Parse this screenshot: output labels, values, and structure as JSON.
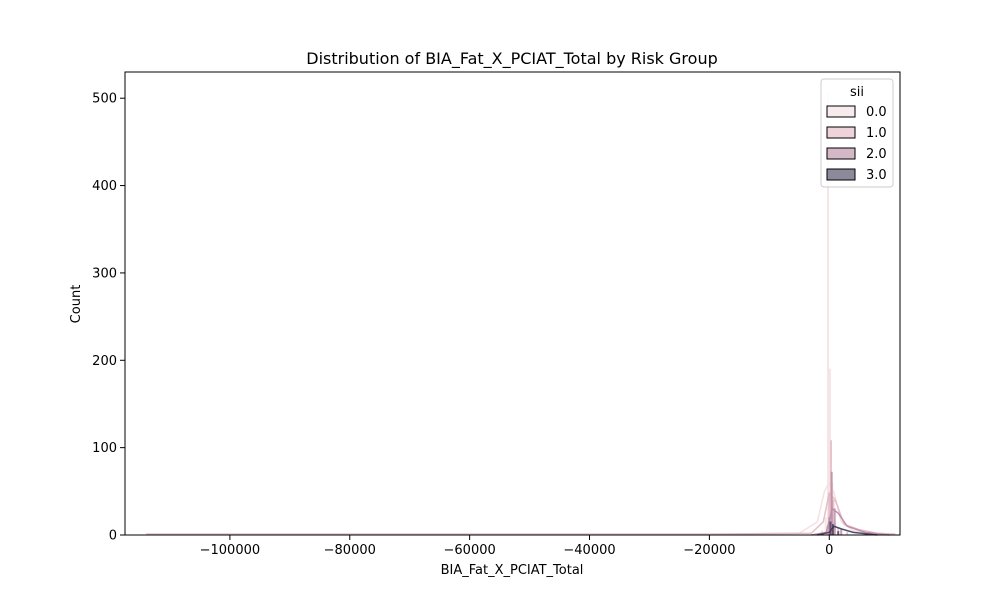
{
  "chart_data": {
    "type": "histogram",
    "title": "Distribution of BIA_Fat_X_PCIAT_Total by Risk Group",
    "xlabel": "BIA_Fat_X_PCIAT_Total",
    "ylabel": "Count",
    "xlim": [
      -117500,
      11800
    ],
    "ylim": [
      0,
      530
    ],
    "x_ticks": [
      -100000,
      -80000,
      -60000,
      -40000,
      -20000,
      0
    ],
    "x_tick_labels": [
      "−100000",
      "−80000",
      "−60000",
      "−40000",
      "−20000",
      "0"
    ],
    "y_ticks": [
      0,
      100,
      200,
      300,
      400,
      500
    ],
    "y_tick_labels": [
      "0",
      "100",
      "200",
      "300",
      "400",
      "500"
    ],
    "grid": false,
    "legend": {
      "title": "sii",
      "placement": "top-right"
    },
    "series": [
      {
        "name": "0.0",
        "color": "#f3dede",
        "bars": [
          [
            -1200,
            5
          ],
          [
            -600,
            20
          ],
          [
            -200,
            508
          ],
          [
            100,
            190
          ],
          [
            500,
            60
          ],
          [
            1000,
            15
          ],
          [
            2000,
            4
          ]
        ],
        "kde": [
          [
            -114000,
            1
          ],
          [
            -60000,
            1
          ],
          [
            -20000,
            1
          ],
          [
            -5000,
            2
          ],
          [
            -2000,
            15
          ],
          [
            -800,
            50
          ],
          [
            0,
            60
          ],
          [
            800,
            48
          ],
          [
            2000,
            15
          ],
          [
            4000,
            5
          ],
          [
            7000,
            2
          ],
          [
            11000,
            1
          ]
        ]
      },
      {
        "name": "1.0",
        "color": "#e3b7c2",
        "bars": [
          [
            -300,
            10
          ],
          [
            0,
            48
          ],
          [
            300,
            108
          ],
          [
            700,
            40
          ],
          [
            1500,
            8
          ],
          [
            3000,
            3
          ]
        ],
        "kde": [
          [
            -114000,
            1
          ],
          [
            -60000,
            1
          ],
          [
            -20000,
            1
          ],
          [
            -3000,
            2
          ],
          [
            -1000,
            15
          ],
          [
            0,
            48
          ],
          [
            1000,
            40
          ],
          [
            2500,
            12
          ],
          [
            5000,
            6
          ],
          [
            8000,
            2
          ],
          [
            11000,
            1
          ]
        ]
      },
      {
        "name": "2.0",
        "color": "#b889a4",
        "bars": [
          [
            0,
            20
          ],
          [
            400,
            72
          ],
          [
            900,
            30
          ],
          [
            2000,
            6
          ]
        ],
        "kde": [
          [
            -3000,
            0
          ],
          [
            -500,
            3
          ],
          [
            500,
            30
          ],
          [
            1500,
            25
          ],
          [
            3000,
            10
          ],
          [
            6000,
            3
          ],
          [
            10000,
            0
          ]
        ]
      },
      {
        "name": "3.0",
        "color": "#3f3a56",
        "bars": [
          [
            200,
            15
          ],
          [
            600,
            12
          ],
          [
            1500,
            4
          ]
        ],
        "kde": [
          [
            -2000,
            0
          ],
          [
            0,
            3
          ],
          [
            800,
            10
          ],
          [
            2000,
            7
          ],
          [
            4000,
            3
          ],
          [
            8000,
            0
          ]
        ]
      }
    ]
  }
}
